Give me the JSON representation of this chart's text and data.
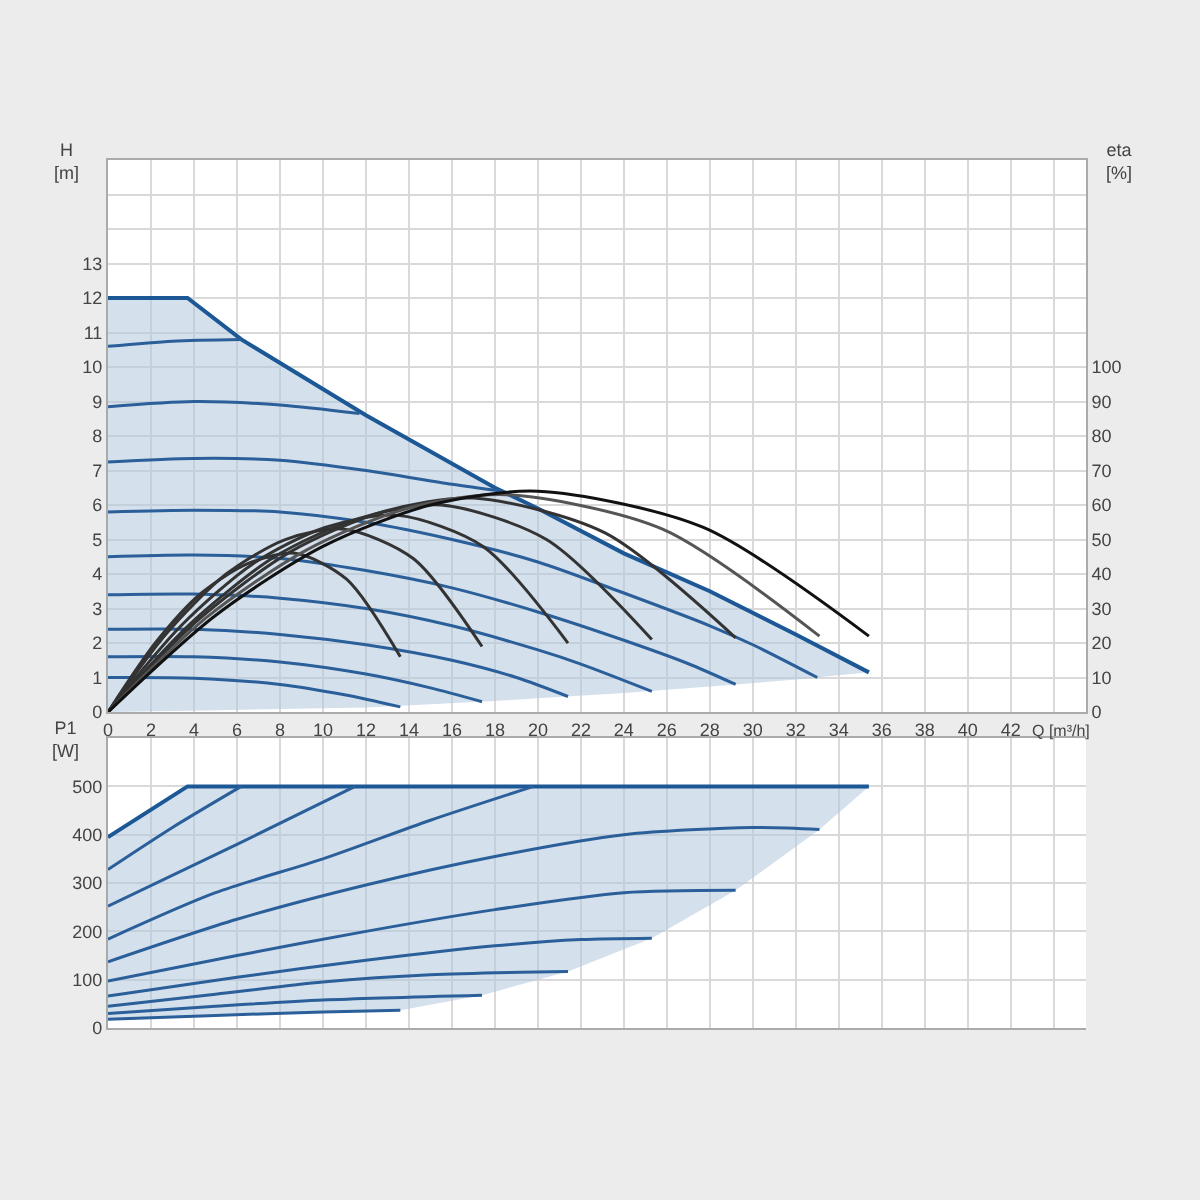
{
  "chart_data": [
    {
      "type": "line",
      "ylabel": "H\n[m]",
      "y2label": "eta\n[%]",
      "xlabel": "Q [m³/h]",
      "grid": true,
      "xlim": [
        0,
        45.5
      ],
      "xticks": [
        0,
        2,
        4,
        6,
        8,
        10,
        12,
        14,
        16,
        18,
        20,
        22,
        24,
        26,
        28,
        30,
        32,
        34,
        36,
        38,
        40,
        42,
        {
          "value": 44,
          "label": null
        }
      ],
      "ylim": [
        0,
        16
      ],
      "yticks": [
        0,
        1,
        2,
        3,
        4,
        5,
        6,
        7,
        8,
        9,
        10,
        11,
        12,
        13,
        {
          "value": 14,
          "label": null
        },
        {
          "value": 15,
          "label": null
        }
      ],
      "y2lim": [
        0,
        160
      ],
      "y2ticks": [
        0,
        10,
        20,
        30,
        40,
        50,
        60,
        70,
        80,
        90,
        100
      ],
      "series": [
        {
          "type": "line",
          "color": "#1c5796",
          "x": [
            0,
            3.7,
            6.2,
            12,
            18,
            20,
            24,
            28,
            32,
            35.4
          ],
          "values": [
            12,
            12,
            10.8,
            8.6,
            6.5,
            5.9,
            4.6,
            3.5,
            2.25,
            1.15
          ],
          "lower": [
            0,
            0.04,
            0.07,
            0.13,
            0.32,
            0.4,
            0.55,
            0.74,
            0.94,
            1.15
          ],
          "upper": [
            12,
            12,
            10.8,
            8.6,
            6.5,
            5.9,
            4.6,
            3.5,
            2.25,
            1.15
          ]
        },
        {
          "type": "line",
          "color": "#2a5f9a",
          "x": [
            0,
            3,
            6.2
          ],
          "values": [
            10.6,
            10.75,
            10.8
          ]
        },
        {
          "type": "line",
          "color": "#2a5f9a",
          "x": [
            0,
            4,
            8,
            11.7
          ],
          "values": [
            8.85,
            9.0,
            8.9,
            8.65
          ]
        },
        {
          "type": "line",
          "color": "#2a5f9a",
          "x": [
            0,
            4,
            8,
            12,
            16,
            18.3
          ],
          "values": [
            7.25,
            7.35,
            7.3,
            7.0,
            6.6,
            6.4
          ]
        },
        {
          "type": "line",
          "color": "#2a5f9a",
          "x": [
            0,
            4,
            8,
            12,
            16,
            20,
            24,
            28,
            30,
            33
          ],
          "values": [
            5.8,
            5.85,
            5.8,
            5.5,
            5.0,
            4.35,
            3.45,
            2.5,
            1.95,
            1.0
          ]
        },
        {
          "type": "line",
          "color": "#2a5f9a",
          "x": [
            0,
            4,
            8,
            12,
            16,
            20,
            24,
            27,
            29.2
          ],
          "values": [
            4.5,
            4.55,
            4.45,
            4.1,
            3.6,
            2.9,
            2.08,
            1.4,
            0.8
          ]
        },
        {
          "type": "line",
          "color": "#2a5f9a",
          "x": [
            0,
            4,
            8,
            12,
            16,
            20,
            22,
            25.3
          ],
          "values": [
            3.4,
            3.42,
            3.3,
            3.0,
            2.5,
            1.8,
            1.39,
            0.6
          ]
        },
        {
          "type": "line",
          "color": "#2a5f9a",
          "x": [
            0,
            4,
            8,
            12,
            16,
            19,
            21.4
          ],
          "values": [
            2.4,
            2.4,
            2.25,
            1.95,
            1.5,
            1.0,
            0.45
          ]
        },
        {
          "type": "line",
          "color": "#2a5f9a",
          "x": [
            0,
            4,
            8,
            12,
            15,
            17.4
          ],
          "values": [
            1.6,
            1.6,
            1.45,
            1.1,
            0.7,
            0.3
          ]
        },
        {
          "type": "line",
          "color": "#2a5f9a",
          "x": [
            0,
            4,
            8,
            11,
            13.6
          ],
          "values": [
            1.0,
            0.98,
            0.8,
            0.5,
            0.15
          ]
        },
        {
          "type": "line",
          "axis": "y2",
          "color": "#333333",
          "x": [
            0,
            2.2,
            4.35,
            6.5,
            8.7,
            11.1,
            13.6
          ],
          "values": [
            0,
            20,
            34.5,
            43,
            46,
            38.5,
            16
          ]
        },
        {
          "type": "line",
          "axis": "y2",
          "color": "#333333",
          "x": [
            0,
            2.75,
            5.5,
            8.25,
            11,
            14.2,
            17.4
          ],
          "values": [
            0,
            23,
            40,
            50,
            53,
            44.5,
            19
          ]
        },
        {
          "type": "line",
          "axis": "y2",
          "color": "#333333",
          "x": [
            0,
            3.4,
            6.75,
            10.1,
            13.5,
            17.45,
            21.4
          ],
          "values": [
            0,
            25,
            43,
            53.5,
            57,
            48,
            20
          ]
        },
        {
          "type": "line",
          "axis": "y2",
          "color": "#333333",
          "x": [
            0,
            3.9,
            7.75,
            11.6,
            15.5,
            20.4,
            25.3
          ],
          "values": [
            0,
            26,
            45,
            56,
            60,
            50,
            21
          ]
        },
        {
          "type": "line",
          "axis": "y2",
          "color": "#333333",
          "x": [
            0,
            4.25,
            8.5,
            12.75,
            17,
            23.1,
            29.2
          ],
          "values": [
            0,
            27,
            46.5,
            58,
            62,
            52,
            21.5
          ]
        },
        {
          "type": "line",
          "axis": "y2",
          "color": "#555555",
          "x": [
            0,
            4.6,
            9.25,
            13.9,
            18.5,
            25.8,
            33.1
          ],
          "values": [
            0,
            27.5,
            47,
            59,
            63,
            53,
            22
          ]
        },
        {
          "type": "line",
          "axis": "y2",
          "color": "#111111",
          "x": [
            0,
            5,
            10,
            15,
            20,
            27.7,
            35.4
          ],
          "values": [
            0,
            28,
            48,
            60,
            64,
            53.5,
            22
          ]
        }
      ]
    },
    {
      "type": "line",
      "ylabel": "P1\n[W]",
      "grid": true,
      "tick_labels": "y",
      "xlim": [
        0,
        45.5
      ],
      "xticks": [
        0,
        2,
        4,
        6,
        8,
        10,
        12,
        14,
        16,
        18,
        20,
        22,
        24,
        26,
        28,
        30,
        32,
        34,
        36,
        38,
        40,
        42,
        {
          "value": 44,
          "label": null
        }
      ],
      "ylim": [
        0,
        600
      ],
      "yticks": [
        0,
        100,
        200,
        300,
        400,
        500
      ],
      "series": [
        {
          "type": "line",
          "color": "#1c5796",
          "x": [
            0,
            3.7,
            6.2,
            11.5,
            13.6,
            17.4,
            21.4,
            25.3,
            29.2,
            33.1,
            35.4
          ],
          "values": [
            395,
            500,
            500,
            500,
            500,
            500,
            500,
            500,
            500,
            500,
            500
          ],
          "lower": [
            18,
            24,
            28,
            35,
            37,
            68,
            117,
            186,
            285,
            411,
            500
          ],
          "upper": [
            395,
            500,
            500,
            500,
            500,
            500,
            500,
            500,
            500,
            500,
            500
          ]
        },
        {
          "type": "line",
          "color": "#2a5f9a",
          "x": [
            0,
            3,
            6.2
          ],
          "values": [
            328,
            415,
            500
          ]
        },
        {
          "type": "line",
          "color": "#2a5f9a",
          "x": [
            0,
            6,
            11.5
          ],
          "values": [
            252,
            380,
            500
          ]
        },
        {
          "type": "line",
          "color": "#2a5f9a",
          "x": [
            0,
            5,
            10,
            15,
            19.8
          ],
          "values": [
            184,
            280,
            350,
            430,
            500
          ]
        },
        {
          "type": "line",
          "color": "#2a5f9a",
          "x": [
            0,
            6,
            12,
            18,
            24,
            30,
            33.1
          ],
          "values": [
            137,
            225,
            296,
            355,
            400,
            415,
            411
          ]
        },
        {
          "type": "line",
          "color": "#2a5f9a",
          "x": [
            0,
            6,
            12,
            18,
            24,
            29.2
          ],
          "values": [
            97,
            150,
            200,
            245,
            280,
            285
          ]
        },
        {
          "type": "line",
          "color": "#2a5f9a",
          "x": [
            0,
            6,
            12,
            18,
            22,
            25.3
          ],
          "values": [
            66,
            105,
            140,
            170,
            183,
            186
          ]
        },
        {
          "type": "line",
          "color": "#2a5f9a",
          "x": [
            0,
            5,
            10,
            15,
            21.4
          ],
          "values": [
            45,
            70,
            95,
            110,
            117
          ]
        },
        {
          "type": "line",
          "color": "#2a5f9a",
          "x": [
            0,
            5,
            10,
            17.4
          ],
          "values": [
            30,
            45,
            58,
            68
          ]
        },
        {
          "type": "line",
          "color": "#2a5f9a",
          "x": [
            0,
            5,
            10,
            13.6
          ],
          "values": [
            18,
            26,
            33,
            37
          ]
        }
      ]
    }
  ]
}
